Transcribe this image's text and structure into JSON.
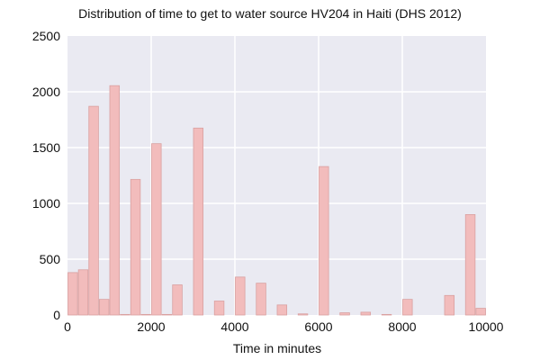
{
  "chart_data": {
    "type": "bar",
    "title": "Distribution of time to get to water source HV204 in Haiti (DHS 2012)",
    "xlabel": "Time in minutes",
    "ylabel": "",
    "xlim": [
      0,
      10000
    ],
    "ylim": [
      0,
      2500
    ],
    "xticks": [
      "0",
      "2000",
      "4000",
      "6000",
      "8000",
      "10000"
    ],
    "yticks": [
      "0",
      "500",
      "1000",
      "1500",
      "2000",
      "2500"
    ],
    "grid": true,
    "bin_width": 250,
    "bins": [
      {
        "x0": 0,
        "x1": 250,
        "count": 380
      },
      {
        "x0": 250,
        "x1": 500,
        "count": 405
      },
      {
        "x0": 500,
        "x1": 750,
        "count": 1870
      },
      {
        "x0": 750,
        "x1": 1000,
        "count": 140
      },
      {
        "x0": 1000,
        "x1": 1250,
        "count": 2055
      },
      {
        "x0": 1250,
        "x1": 1500,
        "count": 5
      },
      {
        "x0": 1500,
        "x1": 1750,
        "count": 1215
      },
      {
        "x0": 1750,
        "x1": 2000,
        "count": 5
      },
      {
        "x0": 2000,
        "x1": 2250,
        "count": 1535
      },
      {
        "x0": 2250,
        "x1": 2500,
        "count": 5
      },
      {
        "x0": 2500,
        "x1": 2750,
        "count": 270
      },
      {
        "x0": 3000,
        "x1": 3250,
        "count": 1675
      },
      {
        "x0": 3500,
        "x1": 3750,
        "count": 125
      },
      {
        "x0": 4000,
        "x1": 4250,
        "count": 340
      },
      {
        "x0": 4500,
        "x1": 4750,
        "count": 285
      },
      {
        "x0": 5000,
        "x1": 5250,
        "count": 90
      },
      {
        "x0": 5500,
        "x1": 5750,
        "count": 10
      },
      {
        "x0": 6000,
        "x1": 6250,
        "count": 1330
      },
      {
        "x0": 6500,
        "x1": 6750,
        "count": 20
      },
      {
        "x0": 7000,
        "x1": 7250,
        "count": 25
      },
      {
        "x0": 7500,
        "x1": 7750,
        "count": 5
      },
      {
        "x0": 8000,
        "x1": 8250,
        "count": 140
      },
      {
        "x0": 9000,
        "x1": 9250,
        "count": 175
      },
      {
        "x0": 9500,
        "x1": 9750,
        "count": 900
      },
      {
        "x0": 9750,
        "x1": 10000,
        "count": 60
      }
    ],
    "colors": {
      "bar_fill": "#f2bcbc",
      "bar_stroke": "#d9a0a0",
      "plot_bg": "#eaeaf2",
      "grid": "#ffffff"
    }
  }
}
